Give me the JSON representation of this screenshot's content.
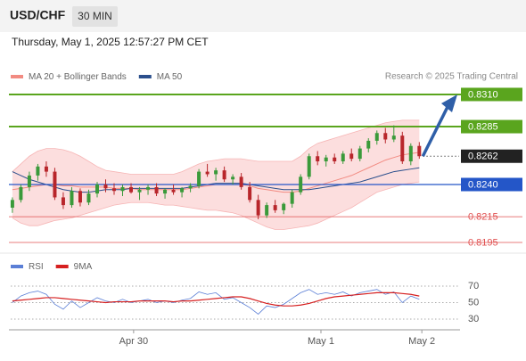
{
  "chart_data": {
    "type": "candlestick",
    "symbol": "USD/CHF",
    "timeframe": "30 MIN",
    "timestamp": "Thursday, May 1, 2025 12:57:27 PM CET",
    "credit": "Research © 2025 Trading Central",
    "legend": [
      {
        "name": "MA 20 + Bollinger Bands",
        "color": "#f28b82"
      },
      {
        "name": "MA 50",
        "color": "#2b4f8c"
      }
    ],
    "xlim": [
      -0.2,
      52.7
    ],
    "xticks": [
      {
        "value": 14.3,
        "label": "Apr 30"
      },
      {
        "value": 36.4,
        "label": "May 1"
      },
      {
        "value": 48.3,
        "label": "May 2"
      }
    ],
    "ylim": [
      0.8185,
      0.833
    ],
    "up_color": "#3a9a3a",
    "down_color": "#b8262b",
    "candles": [
      [
        0.8222,
        0.823,
        0.8218,
        0.8228
      ],
      [
        0.8228,
        0.824,
        0.8226,
        0.8238
      ],
      [
        0.8238,
        0.825,
        0.8235,
        0.8247
      ],
      [
        0.8247,
        0.8256,
        0.8243,
        0.8254
      ],
      [
        0.8254,
        0.8258,
        0.8246,
        0.825
      ],
      [
        0.825,
        0.8253,
        0.8228,
        0.823
      ],
      [
        0.823,
        0.8234,
        0.8221,
        0.8224
      ],
      [
        0.8224,
        0.8238,
        0.8222,
        0.8235
      ],
      [
        0.8235,
        0.8237,
        0.8223,
        0.8226
      ],
      [
        0.8226,
        0.8236,
        0.8224,
        0.8233
      ],
      [
        0.8233,
        0.8242,
        0.823,
        0.824
      ],
      [
        0.824,
        0.8244,
        0.8234,
        0.8237
      ],
      [
        0.8237,
        0.8241,
        0.8232,
        0.8235
      ],
      [
        0.8235,
        0.824,
        0.8231,
        0.8238
      ],
      [
        0.8238,
        0.8241,
        0.8233,
        0.8234
      ],
      [
        0.8234,
        0.8238,
        0.8228,
        0.8236
      ],
      [
        0.8236,
        0.824,
        0.8232,
        0.8238
      ],
      [
        0.8238,
        0.8241,
        0.8231,
        0.8233
      ],
      [
        0.8233,
        0.8237,
        0.8229,
        0.8236
      ],
      [
        0.8236,
        0.824,
        0.8232,
        0.8234
      ],
      [
        0.8234,
        0.8238,
        0.823,
        0.8237
      ],
      [
        0.8237,
        0.8241,
        0.8234,
        0.8239
      ],
      [
        0.8239,
        0.8252,
        0.8237,
        0.825
      ],
      [
        0.825,
        0.8256,
        0.8246,
        0.8248
      ],
      [
        0.8248,
        0.8253,
        0.8243,
        0.8251
      ],
      [
        0.8251,
        0.8254,
        0.8242,
        0.8244
      ],
      [
        0.8244,
        0.8248,
        0.824,
        0.8246
      ],
      [
        0.8246,
        0.8249,
        0.8236,
        0.8238
      ],
      [
        0.8238,
        0.8242,
        0.8226,
        0.8228
      ],
      [
        0.8228,
        0.8232,
        0.8213,
        0.8216
      ],
      [
        0.8216,
        0.8226,
        0.8214,
        0.8224
      ],
      [
        0.8224,
        0.8228,
        0.8218,
        0.822
      ],
      [
        0.822,
        0.8226,
        0.8217,
        0.8225
      ],
      [
        0.8225,
        0.8236,
        0.8222,
        0.8234
      ],
      [
        0.8234,
        0.8248,
        0.8232,
        0.8246
      ],
      [
        0.8246,
        0.8264,
        0.8244,
        0.8262
      ],
      [
        0.8262,
        0.8266,
        0.8255,
        0.8258
      ],
      [
        0.8258,
        0.8263,
        0.8254,
        0.8261
      ],
      [
        0.8261,
        0.8264,
        0.8256,
        0.8258
      ],
      [
        0.8258,
        0.8266,
        0.8256,
        0.8264
      ],
      [
        0.8264,
        0.8268,
        0.8258,
        0.826
      ],
      [
        0.826,
        0.827,
        0.8258,
        0.8268
      ],
      [
        0.8268,
        0.8276,
        0.8265,
        0.8274
      ],
      [
        0.8274,
        0.8282,
        0.8271,
        0.828
      ],
      [
        0.828,
        0.8284,
        0.8272,
        0.8275
      ],
      [
        0.8275,
        0.8286,
        0.8273,
        0.8278
      ],
      [
        0.8278,
        0.8281,
        0.8256,
        0.8258
      ],
      [
        0.8258,
        0.8272,
        0.8255,
        0.827
      ],
      [
        0.827,
        0.8273,
        0.826,
        0.8262
      ]
    ],
    "ma20": [
      0.8236,
      0.8237,
      0.8238,
      0.8239,
      0.824,
      0.824,
      0.8239,
      0.8239,
      0.8238,
      0.8238,
      0.8238,
      0.8238,
      0.8237,
      0.8237,
      0.8237,
      0.8236,
      0.8236,
      0.8236,
      0.8236,
      0.8236,
      0.8236,
      0.8237,
      0.8238,
      0.8239,
      0.824,
      0.824,
      0.824,
      0.824,
      0.8239,
      0.8237,
      0.8236,
      0.8235,
      0.8234,
      0.8234,
      0.8235,
      0.8237,
      0.8239,
      0.8241,
      0.8243,
      0.8245,
      0.8247,
      0.825,
      0.8253,
      0.8256,
      0.8259,
      0.8261,
      0.8263,
      0.8264,
      0.8265
    ],
    "band_upper": [
      0.825,
      0.8256,
      0.8262,
      0.8266,
      0.8268,
      0.8268,
      0.8267,
      0.8265,
      0.8262,
      0.8258,
      0.8254,
      0.8251,
      0.825,
      0.8249,
      0.8248,
      0.8248,
      0.8248,
      0.8248,
      0.8248,
      0.8248,
      0.825,
      0.8253,
      0.8256,
      0.8258,
      0.8259,
      0.826,
      0.826,
      0.826,
      0.8259,
      0.8258,
      0.8258,
      0.8258,
      0.8258,
      0.8258,
      0.8262,
      0.8268,
      0.8272,
      0.8274,
      0.8276,
      0.8278,
      0.828,
      0.8282,
      0.8284,
      0.8286,
      0.8288,
      0.8289,
      0.829,
      0.829,
      0.829
    ],
    "band_lower": [
      0.8214,
      0.821,
      0.8208,
      0.8208,
      0.821,
      0.8212,
      0.8213,
      0.8214,
      0.8216,
      0.8218,
      0.822,
      0.8222,
      0.8224,
      0.8225,
      0.8226,
      0.8226,
      0.8226,
      0.8225,
      0.8224,
      0.8224,
      0.8223,
      0.8222,
      0.8221,
      0.822,
      0.822,
      0.8219,
      0.8218,
      0.8216,
      0.8213,
      0.821,
      0.8207,
      0.8205,
      0.8205,
      0.8206,
      0.8207,
      0.8208,
      0.821,
      0.8213,
      0.8216,
      0.8219,
      0.8222,
      0.8226,
      0.823,
      0.8234,
      0.8236,
      0.8238,
      0.824,
      0.8241,
      0.8242
    ],
    "ma50": [
      0.825,
      0.8247,
      0.8244,
      0.8242,
      0.824,
      0.8238,
      0.8236,
      0.8235,
      0.8234,
      0.8234,
      0.8235,
      0.8236,
      0.8236,
      0.8236,
      0.8237,
      0.8237,
      0.8237,
      0.8237,
      0.8237,
      0.8237,
      0.8237,
      0.8238,
      0.8239,
      0.824,
      0.8241,
      0.8241,
      0.8241,
      0.8241,
      0.824,
      0.8239,
      0.8238,
      0.8237,
      0.8236,
      0.8236,
      0.8236,
      0.8236,
      0.8237,
      0.8238,
      0.8239,
      0.824,
      0.8241,
      0.8242,
      0.8244,
      0.8246,
      0.8248,
      0.825,
      0.8251,
      0.8252,
      0.8253
    ],
    "levels": [
      {
        "value": 0.831,
        "label": "0.8310"
      },
      0.8285,
      0.8262,
      {
        "value": 0.824,
        "label": "0.8240"
      },
      0.8215,
      0.8195
    ],
    "level_colors": [
      "#5aa51e",
      "#5aa51e",
      "#222222",
      "#2456c8",
      "#e05050",
      "#e05050"
    ],
    "rsi_panel": {
      "series": [
        {
          "name": "RSI",
          "color": "#5b7fd6",
          "values": [
            50,
            58,
            62,
            64,
            60,
            48,
            42,
            52,
            44,
            50,
            56,
            52,
            50,
            54,
            50,
            52,
            54,
            50,
            52,
            50,
            53,
            55,
            63,
            60,
            62,
            54,
            56,
            50,
            44,
            36,
            46,
            44,
            48,
            55,
            62,
            66,
            60,
            62,
            60,
            63,
            58,
            62,
            64,
            66,
            60,
            63,
            50,
            58,
            54
          ]
        },
        {
          "name": "9MA",
          "color": "#d62020",
          "values": [
            52,
            53,
            54,
            55,
            56,
            56,
            55,
            54,
            53,
            52,
            51,
            50,
            51,
            51,
            51,
            52,
            52,
            52,
            52,
            51,
            52,
            52,
            53,
            54,
            55,
            56,
            57,
            57,
            55,
            52,
            49,
            47,
            46,
            46,
            47,
            49,
            52,
            55,
            57,
            58,
            59,
            60,
            61,
            62,
            62,
            62,
            61,
            60,
            58
          ]
        }
      ],
      "ylim": [
        20,
        80
      ],
      "yticks": [
        70,
        50,
        30
      ]
    }
  }
}
